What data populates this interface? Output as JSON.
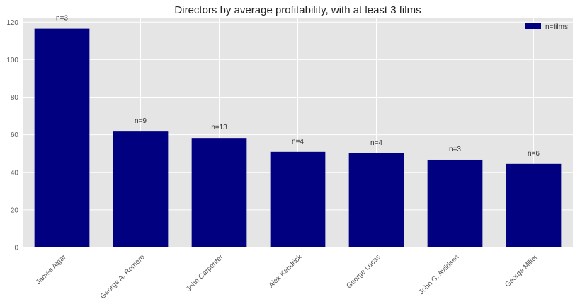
{
  "chart_data": {
    "type": "bar",
    "title": "Directors by average profitability, with at least 3 films",
    "xlabel": "",
    "ylabel": "",
    "categories": [
      "James Algar",
      "George A. Romero",
      "John Carpenter",
      "Alex Kendrick",
      "George Lucas",
      "John G. Avildsen",
      "George Miller"
    ],
    "values": [
      116.5,
      61.7,
      58.3,
      50.9,
      50.1,
      46.7,
      44.5
    ],
    "bar_labels": [
      "n=3",
      "n=9",
      "n=13",
      "n=4",
      "n=4",
      "n=3",
      "n=6"
    ],
    "ylim": [
      0,
      122
    ],
    "yticks": [
      0,
      20,
      40,
      60,
      80,
      100,
      120
    ],
    "legend": {
      "label": "n=films",
      "placement": "top-right"
    },
    "grid": true,
    "colors": {
      "bar": "#000080",
      "background": "#e5e5e5",
      "grid": "#ffffff"
    }
  }
}
